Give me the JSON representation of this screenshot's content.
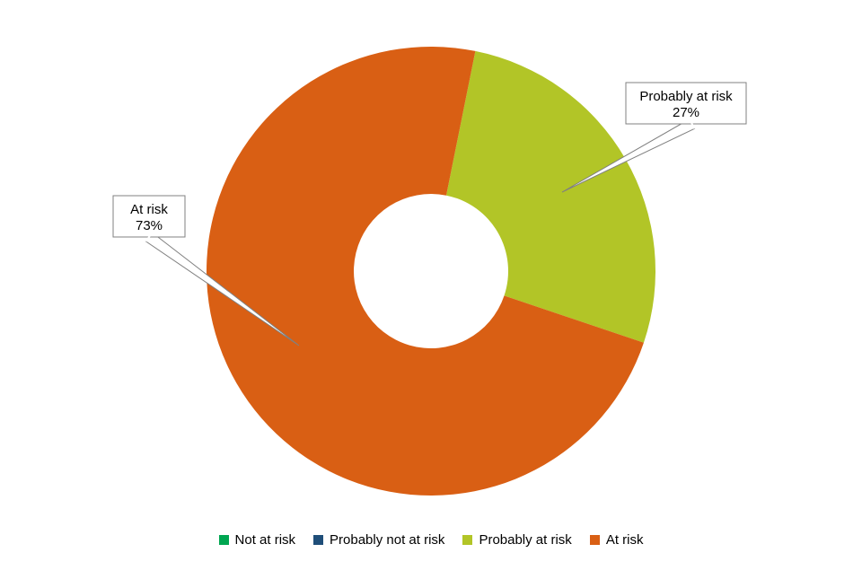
{
  "chart_data": {
    "type": "pie",
    "style": "donut",
    "title": "",
    "categories": [
      "Not at risk",
      "Probably not at risk",
      "Probably at risk",
      "At risk"
    ],
    "values": [
      0,
      0,
      27,
      73
    ],
    "unit": "%",
    "colors": [
      "#00A651",
      "#1F4E79",
      "#B2C527",
      "#D95F14"
    ],
    "data_labels": [
      {
        "category": "Probably at risk",
        "lines": [
          "Probably at risk",
          "27%"
        ]
      },
      {
        "category": "At risk",
        "lines": [
          "At risk",
          "73%"
        ]
      }
    ],
    "legend": {
      "position": "bottom",
      "entries": [
        "Not at risk",
        "Probably not at risk",
        "Probably at risk",
        "At risk"
      ]
    },
    "start_angle_deg": 11.4,
    "direction": "clockwise"
  }
}
